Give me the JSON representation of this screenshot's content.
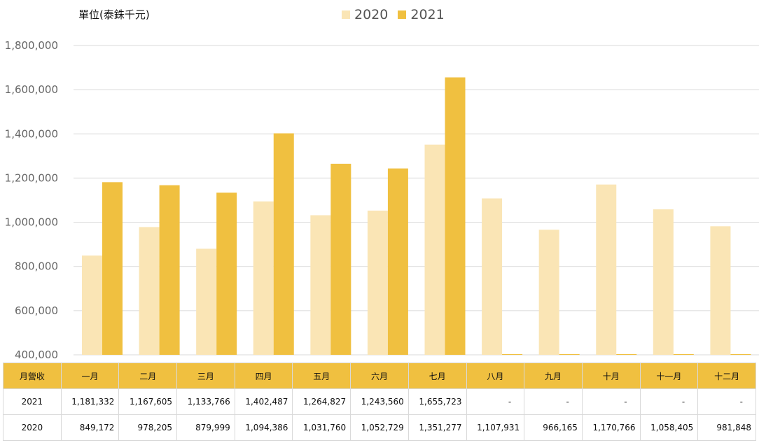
{
  "unit_label": "單位(泰銖千元)",
  "colors": {
    "c2020": "#fae5b5",
    "c2021": "#f0c040",
    "grid": "#d9d9d9",
    "header_bg": "#f0c040"
  },
  "chart_data": {
    "type": "bar",
    "title": "",
    "ylabel": "單位(泰銖千元)",
    "xlabel": "",
    "ylim": [
      400000,
      1800000
    ],
    "yticks": [
      400000,
      600000,
      800000,
      1000000,
      1200000,
      1400000,
      1600000,
      1800000
    ],
    "ytick_labels": [
      "400,000",
      "600,000",
      "800,000",
      "1,000,000",
      "1,200,000",
      "1,400,000",
      "1,600,000",
      "1,800,000"
    ],
    "legend_position": "top-center",
    "categories": [
      "一月",
      "二月",
      "三月",
      "四月",
      "五月",
      "六月",
      "七月",
      "八月",
      "九月",
      "十月",
      "十一月",
      "十二月"
    ],
    "series": [
      {
        "name": "2020",
        "values": [
          849172,
          978205,
          879999,
          1094386,
          1031760,
          1052729,
          1351277,
          1107931,
          966165,
          1170766,
          1058405,
          981848
        ]
      },
      {
        "name": "2021",
        "values": [
          1181332,
          1167605,
          1133766,
          1402487,
          1264827,
          1243560,
          1655723,
          null,
          null,
          null,
          null,
          null
        ]
      }
    ]
  },
  "table": {
    "header_label": "月營收",
    "months": [
      "一月",
      "二月",
      "三月",
      "四月",
      "五月",
      "六月",
      "七月",
      "八月",
      "九月",
      "十月",
      "十一月",
      "十二月"
    ],
    "rows": [
      {
        "label": "2021",
        "cells": [
          "1,181,332",
          "1,167,605",
          "1,133,766",
          "1,402,487",
          "1,264,827",
          "1,243,560",
          "1,655,723",
          "-",
          "-",
          "-",
          "-",
          "-"
        ]
      },
      {
        "label": "2020",
        "cells": [
          "849,172",
          "978,205",
          "879,999",
          "1,094,386",
          "1,031,760",
          "1,052,729",
          "1,351,277",
          "1,107,931",
          "966,165",
          "1,170,766",
          "1,058,405",
          "981,848"
        ]
      }
    ]
  }
}
